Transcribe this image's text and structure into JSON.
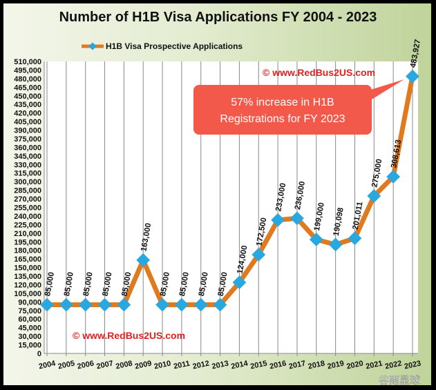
{
  "chart_data": {
    "type": "line",
    "title": "Number of H1B Visa Applications FY 2004 - 2023",
    "legend": {
      "label": "H1B Visa Prospective Applications",
      "placement": "top-left"
    },
    "categories": [
      "2004",
      "2005",
      "2006",
      "2007",
      "2008",
      "2009",
      "2010",
      "2011",
      "2012",
      "2013",
      "2014",
      "2015",
      "2016",
      "2017",
      "2018",
      "2019",
      "2020",
      "2021",
      "2022",
      "2023"
    ],
    "series": [
      {
        "name": "H1B Visa Prospective Applications",
        "values": [
          85000,
          85000,
          85000,
          85000,
          85000,
          163000,
          85000,
          85000,
          85000,
          85000,
          124000,
          172500,
          233000,
          236000,
          199000,
          190098,
          201011,
          275000,
          308613,
          483927
        ],
        "labels": [
          "85,000",
          "85,000",
          "85,000",
          "85,000",
          "85,000",
          "163,000",
          "85,000",
          "85,000",
          "85,000",
          "85,000",
          "124,000",
          "172,500",
          "233,000",
          "236,000",
          "199,000",
          "190,098",
          "201,011",
          "275,000",
          "308,613",
          "483,927"
        ]
      }
    ],
    "ylim": [
      0,
      510000
    ],
    "ytick_step": 15000,
    "grid": "vertical",
    "colors": {
      "line": "#e07a1f",
      "marker": "#29a8e0",
      "callout": "#f2594b",
      "watermark": "#e02020"
    },
    "annotations": {
      "callout": "57% increase in H1B Registrations for FY 2023",
      "watermark_top": "© www.RedBus2US.com",
      "watermark_bottom": "© www.RedBus2US.com",
      "overlay_watermark": "谷雨星球"
    }
  }
}
